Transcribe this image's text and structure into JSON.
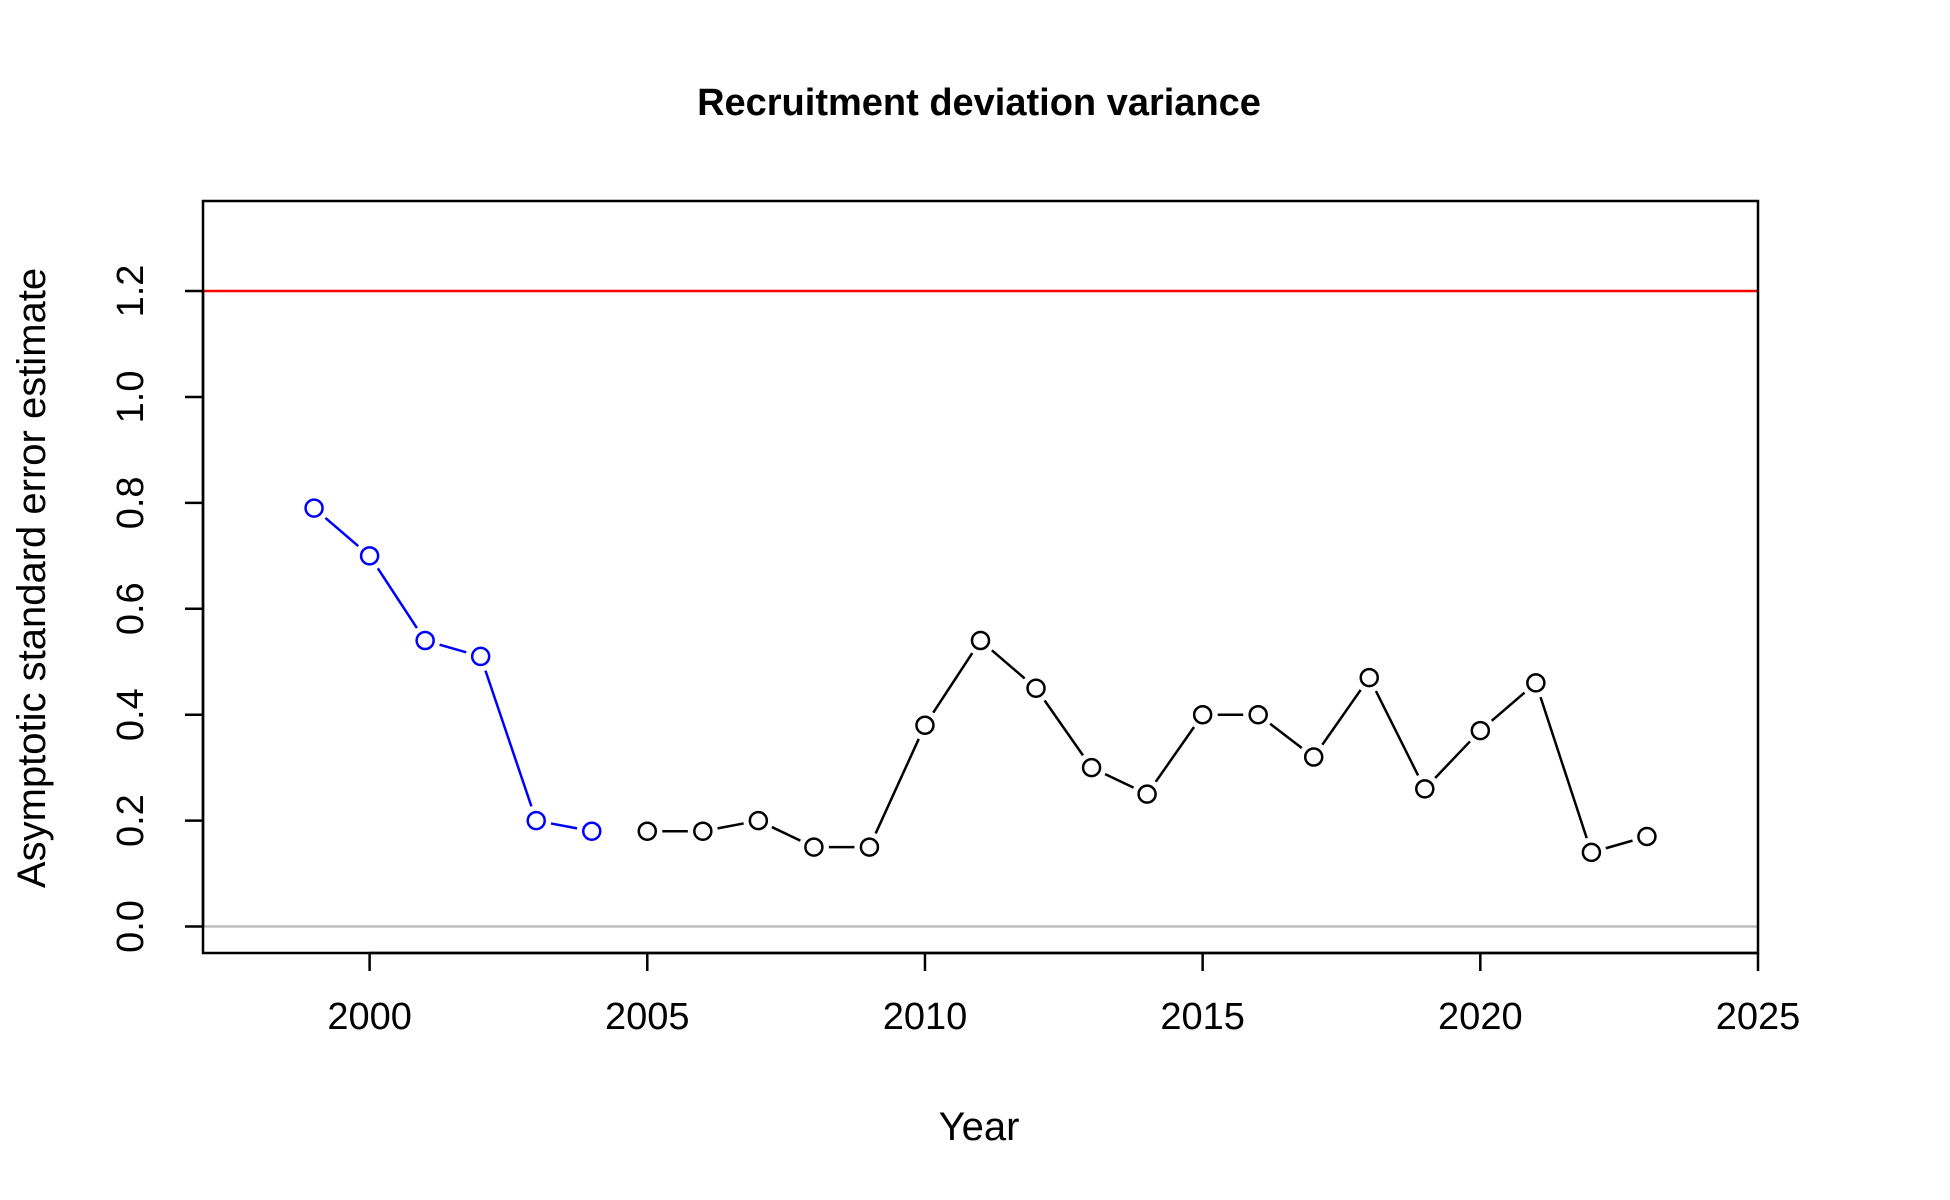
{
  "chart_data": {
    "type": "line",
    "title": "Recruitment deviation variance",
    "xlabel": "Year",
    "ylabel": "Asymptotic standard error estimate",
    "xlim": [
      1997,
      2025
    ],
    "ylim": [
      -0.05,
      1.37
    ],
    "x_ticks": [
      2000,
      2005,
      2010,
      2015,
      2020,
      2025
    ],
    "y_ticks": [
      0.0,
      0.2,
      0.4,
      0.6,
      0.8,
      1.0,
      1.2
    ],
    "x_tick_labels": [
      "2000",
      "2005",
      "2010",
      "2015",
      "2020",
      "2025"
    ],
    "y_tick_labels": [
      "0.0",
      "0.2",
      "0.4",
      "0.6",
      "0.8",
      "1.0",
      "1.2"
    ],
    "grid": false,
    "reference_lines": [
      {
        "y": 1.2,
        "color": "#ff0000"
      },
      {
        "y": 0.0,
        "color": "#bebebe"
      }
    ],
    "series": [
      {
        "color": "#0000ff",
        "x": [
          1999,
          2000,
          2001,
          2002,
          2003,
          2004
        ],
        "y": [
          0.79,
          0.7,
          0.54,
          0.51,
          0.2,
          0.18
        ]
      },
      {
        "color": "#000000",
        "x": [
          2005,
          2006,
          2007,
          2008,
          2009,
          2010,
          2011,
          2012,
          2013,
          2014,
          2015,
          2016,
          2017,
          2018,
          2019,
          2020,
          2021,
          2022,
          2023
        ],
        "y": [
          0.18,
          0.18,
          0.2,
          0.15,
          0.15,
          0.38,
          0.54,
          0.45,
          0.3,
          0.25,
          0.4,
          0.4,
          0.32,
          0.47,
          0.26,
          0.37,
          0.46,
          0.14,
          0.17
        ]
      }
    ]
  }
}
